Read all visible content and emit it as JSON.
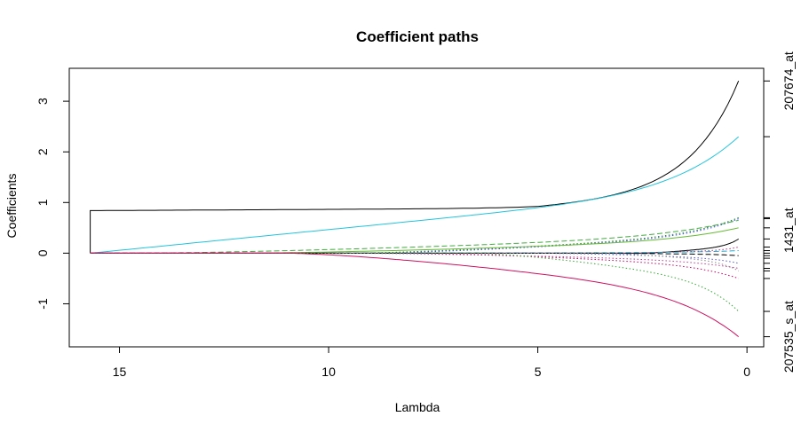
{
  "chart_data": {
    "type": "line",
    "title": "Coefficient paths",
    "xlabel": "Lambda",
    "ylabel": "Coefficients",
    "x_reversed": true,
    "xlim": [
      16.2,
      -0.4
    ],
    "ylim": [
      -1.85,
      3.65
    ],
    "x_ticks": [
      15,
      10,
      5,
      0
    ],
    "y_ticks": [
      -1,
      0,
      1,
      2,
      3
    ],
    "right_axis_labels": [
      {
        "text": "207674_at",
        "value": 3.4
      },
      {
        "text": "1431_at",
        "value": 0.45
      },
      {
        "text": "207535_s_at",
        "value": -1.65
      }
    ],
    "right_axis_ticks": [
      3.4,
      2.3,
      0.7,
      0.68,
      0.5,
      0.28,
      0.12,
      0.05,
      0.0,
      -0.05,
      -0.1,
      -0.2,
      -0.3,
      -0.35,
      -0.5,
      -1.15,
      -1.65
    ],
    "lambda_range": [
      0.2,
      15.7
    ],
    "series": [
      {
        "color": "#000000",
        "dash": "solid",
        "enter": 15.7,
        "final": 3.4
      },
      {
        "color": "#22c4dc",
        "dash": "solid",
        "enter": 15.7,
        "final": 2.3
      },
      {
        "color": "#228b22",
        "dash": "dotted",
        "enter": 9.5,
        "final": 0.7
      },
      {
        "color": "#4c4cff",
        "dash": "dotted",
        "enter": 9.0,
        "final": 0.68
      },
      {
        "color": "#44aa44",
        "dash": "dashed",
        "enter": 14.5,
        "final": 0.65
      },
      {
        "color": "#66bb33",
        "dash": "solid",
        "enter": 12.0,
        "final": 0.5
      },
      {
        "color": "#000000",
        "dash": "solid",
        "enter": 2.5,
        "final": 0.28
      },
      {
        "color": "#cc2288",
        "dash": "dotted",
        "enter": 3.0,
        "final": 0.12
      },
      {
        "color": "#22aacc",
        "dash": "dashed",
        "enter": 6.0,
        "final": 0.05
      },
      {
        "color": "#000000",
        "dash": "dashed",
        "enter": 4.0,
        "final": -0.05
      },
      {
        "color": "#5555ee",
        "dash": "dotted",
        "enter": 5.0,
        "final": -0.2
      },
      {
        "color": "#cc3399",
        "dash": "dotted",
        "enter": 9.5,
        "final": -0.3
      },
      {
        "color": "#888888",
        "dash": "dotted",
        "enter": 3.5,
        "final": -0.35
      },
      {
        "color": "#cc0066",
        "dash": "dotted",
        "enter": 8.0,
        "final": -0.5
      },
      {
        "color": "#33aa33",
        "dash": "dotted",
        "enter": 6.5,
        "final": -1.15
      },
      {
        "color": "#d01060",
        "dash": "solid",
        "enter": 11.0,
        "final": -1.65
      }
    ]
  }
}
